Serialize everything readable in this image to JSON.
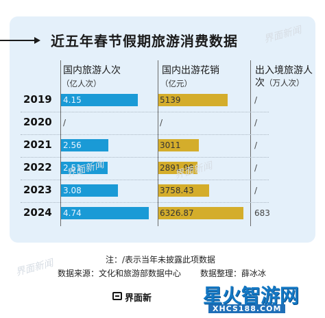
{
  "title": "近五年春节假期旅游消费数据",
  "columns": {
    "trips": {
      "label": "国内旅游人次",
      "unit": "（亿人次）",
      "color": "#1a9ad6"
    },
    "spend": {
      "label": "国内出游花销",
      "unit": "（亿元）",
      "color": "#d4ad2b"
    },
    "inbound": {
      "label": "出入境旅游人次",
      "unit": "（万人次）"
    }
  },
  "chart_data": {
    "type": "bar",
    "categories": [
      "2019",
      "2020",
      "2021",
      "2022",
      "2023",
      "2024"
    ],
    "series": [
      {
        "name": "国内旅游人次",
        "values": [
          4.15,
          null,
          2.56,
          2.51,
          3.08,
          4.74
        ]
      },
      {
        "name": "国内出游花销",
        "values": [
          5139,
          null,
          3011,
          2891.98,
          3758.43,
          6326.87
        ]
      },
      {
        "name": "出入境旅游人次",
        "values": [
          null,
          null,
          null,
          null,
          null,
          683
        ]
      }
    ],
    "labels": {
      "trips": [
        "4.15",
        "/",
        "2.56",
        "2.51",
        "3.08",
        "4.74"
      ],
      "spend": [
        "5139",
        "/",
        "3011",
        "2891.98",
        "3758.43",
        "6326.87"
      ],
      "inbound": [
        "/",
        "/",
        "/",
        "/",
        "/",
        "683"
      ]
    },
    "title": "近五年春节假期旅游消费数据"
  },
  "footer": {
    "note": "注：/表示当年未披露此项数据",
    "source": "数据来源：文化和旅游部数据中心",
    "editor": "数据整理：薛冰冰",
    "logo": "界面新"
  },
  "watermarks": [
    "界面新闻",
    "界面新闻",
    "界面新闻",
    "界面新闻"
  ],
  "brand": {
    "name": "星火智游网",
    "url": "XHCS188.COM"
  }
}
